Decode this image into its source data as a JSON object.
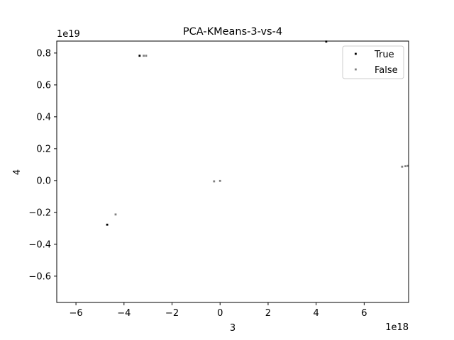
{
  "chart_data": {
    "type": "scatter",
    "title": "PCA-KMeans-3-vs-4",
    "xlabel": "3",
    "ylabel": "4",
    "x_offset_text": "1e18",
    "y_offset_text": "1e19",
    "xlim": [
      -6.8,
      7.85
    ],
    "ylim": [
      -0.765,
      0.875
    ],
    "x_ticks": [
      -6,
      -4,
      -2,
      0,
      2,
      4,
      6
    ],
    "x_tick_labels": [
      "−6",
      "−4",
      "−2",
      "0",
      "2",
      "4",
      "6"
    ],
    "y_ticks": [
      -0.6,
      -0.4,
      -0.2,
      0.0,
      0.2,
      0.4,
      0.6,
      0.8
    ],
    "y_tick_labels": [
      "−0.6",
      "−0.4",
      "−0.2",
      "0.0",
      "0.2",
      "0.4",
      "0.6",
      "0.8"
    ],
    "grid": false,
    "legend_position": "top-right",
    "series": [
      {
        "name": "True",
        "color": "#000000",
        "points": [
          {
            "x": -3.35,
            "y": 0.783
          },
          {
            "x": -4.7,
            "y": -0.277
          },
          {
            "x": 4.42,
            "y": 0.872
          }
        ]
      },
      {
        "name": "False",
        "color": "#808080",
        "points": [
          {
            "x": -3.18,
            "y": 0.783
          },
          {
            "x": -3.08,
            "y": 0.783
          },
          {
            "x": -4.35,
            "y": -0.213
          },
          {
            "x": -0.25,
            "y": -0.005
          },
          {
            "x": 0.0,
            "y": -0.002
          },
          {
            "x": 7.58,
            "y": 0.087
          },
          {
            "x": 7.72,
            "y": 0.09
          },
          {
            "x": 7.82,
            "y": 0.092
          }
        ]
      }
    ]
  }
}
